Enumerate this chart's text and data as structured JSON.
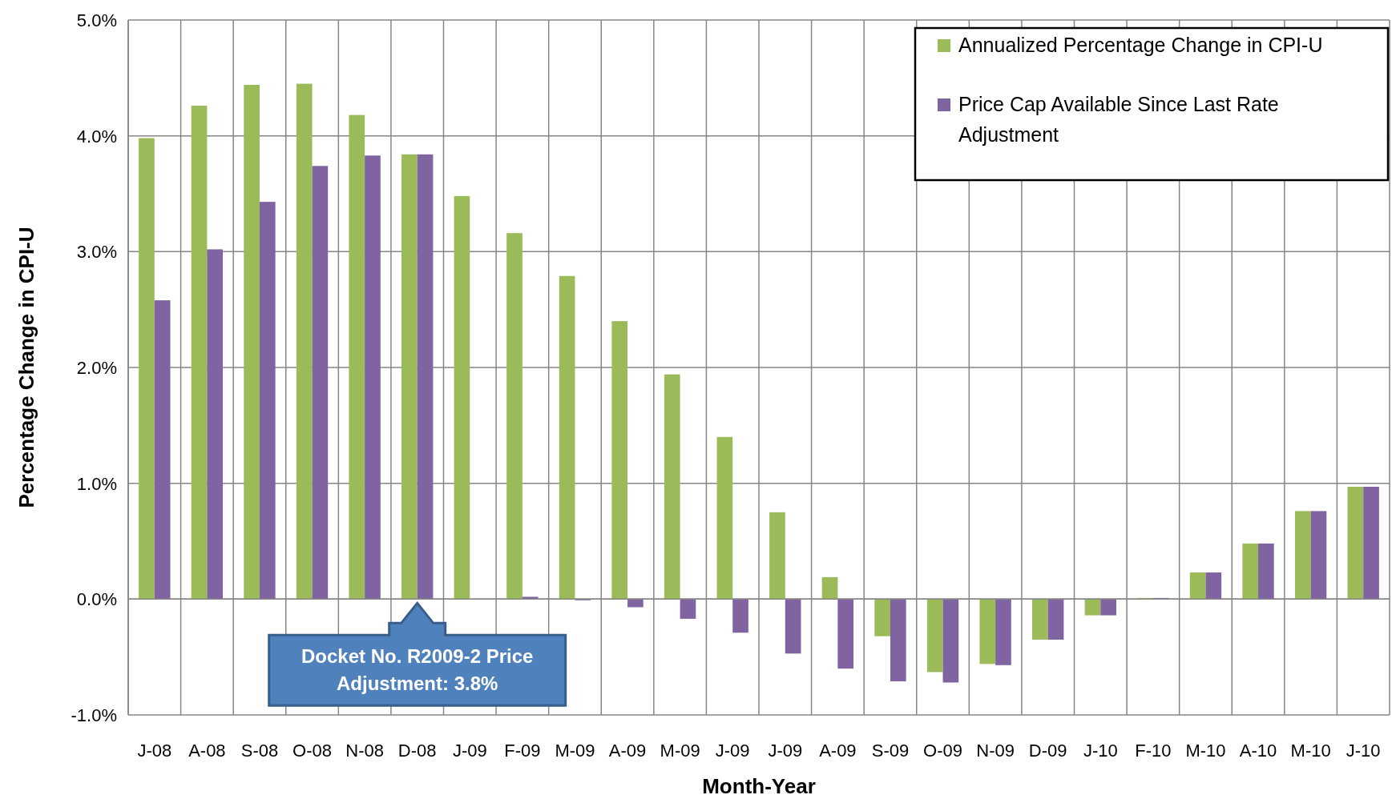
{
  "chart_data": {
    "type": "bar",
    "xlabel": "Month-Year",
    "ylabel": "Percentage Change in CPI-U",
    "categories": [
      "J-08",
      "A-08",
      "S-08",
      "O-08",
      "N-08",
      "D-08",
      "J-09",
      "F-09",
      "M-09",
      "A-09",
      "M-09",
      "J-09",
      "J-09",
      "A-09",
      "S-09",
      "O-09",
      "N-09",
      "D-09",
      "J-10",
      "F-10",
      "M-10",
      "A-10",
      "M-10",
      "J-10"
    ],
    "series": [
      {
        "name": "Annualized Percentage Change in CPI-U",
        "color": "#9bbb59",
        "values": [
          3.98,
          4.26,
          4.44,
          4.45,
          4.18,
          3.84,
          3.48,
          3.16,
          2.79,
          2.4,
          1.94,
          1.4,
          0.75,
          0.19,
          -0.32,
          -0.63,
          -0.56,
          -0.35,
          -0.14,
          0.01,
          0.23,
          0.48,
          0.76,
          0.97
        ]
      },
      {
        "name": "Price Cap Available Since Last Rate Adjustment",
        "color": "#8064a2",
        "values": [
          2.58,
          3.02,
          3.43,
          3.74,
          3.83,
          3.84,
          0,
          0.02,
          -0.01,
          -0.07,
          -0.17,
          -0.29,
          -0.47,
          -0.6,
          -0.71,
          -0.72,
          -0.57,
          -0.35,
          -0.14,
          0.01,
          0.23,
          0.48,
          0.76,
          0.97
        ]
      }
    ],
    "ylim": [
      -1,
      5
    ],
    "yticks": [
      {
        "value": -1,
        "label": "-1.0%"
      },
      {
        "value": 0,
        "label": "0.0%"
      },
      {
        "value": 1,
        "label": "1.0%"
      },
      {
        "value": 2,
        "label": "2.0%"
      },
      {
        "value": 3,
        "label": "3.0%"
      },
      {
        "value": 4,
        "label": "4.0%"
      },
      {
        "value": 5,
        "label": "5.0%"
      }
    ],
    "grid": true,
    "legend": "top right",
    "annotations": [
      {
        "text": "Docket No. R2009-2 Price Adjustment: 3.8%",
        "x": "D-08",
        "y": 0
      }
    ]
  }
}
